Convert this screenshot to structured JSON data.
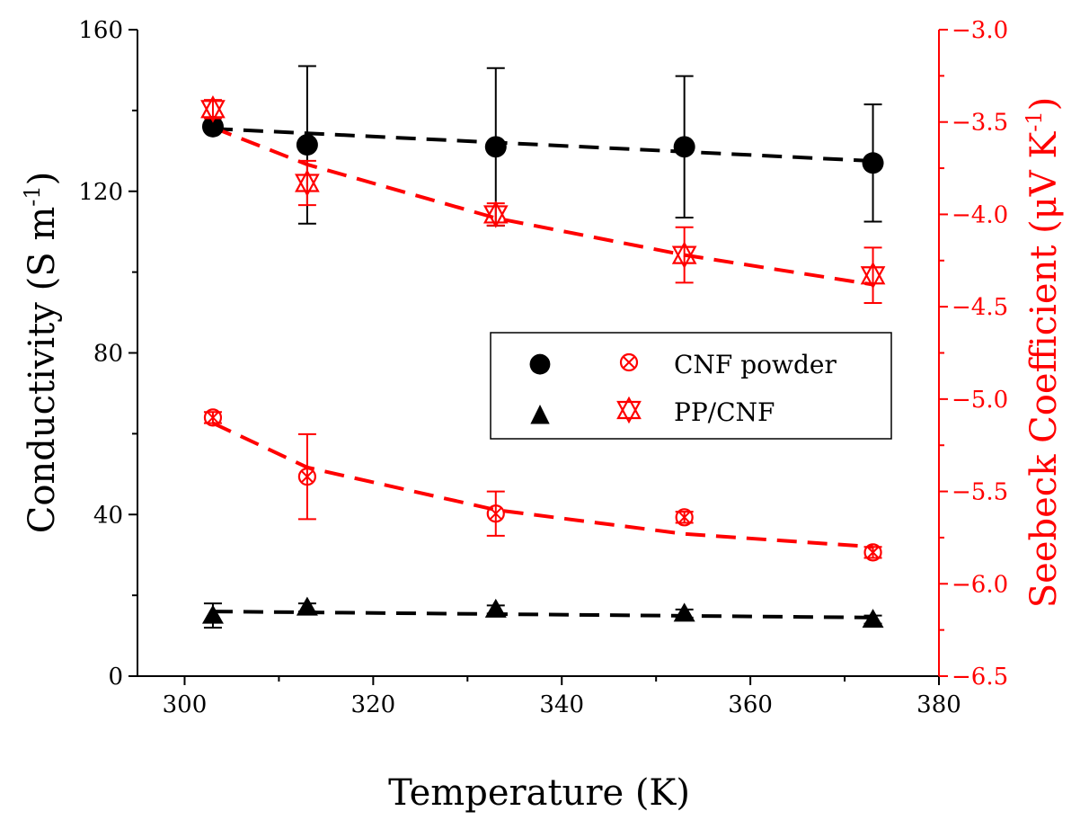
{
  "chart_data": {
    "type": "scatter",
    "xlabel": "Temperature (K)",
    "ylabel_left": {
      "text": "Conductivity (S m",
      "sup": "-1",
      "close": ")"
    },
    "ylabel_right": {
      "text": "Seebeck Coefficient (μV K",
      "sup": "-1",
      "close": ")"
    },
    "x_range": [
      295,
      380
    ],
    "x_ticks": [
      300,
      320,
      340,
      360,
      380
    ],
    "x_tick_labels": [
      "300",
      "320",
      "340",
      "360",
      "380"
    ],
    "y_left_range": [
      0,
      160
    ],
    "y_left_ticks": [
      0,
      40,
      80,
      120,
      160
    ],
    "y_left_tick_labels": [
      "0",
      "40",
      "80",
      "120",
      "160"
    ],
    "y_right_range": [
      -6.5,
      -3.0
    ],
    "y_right_ticks": [
      -6.5,
      -6.0,
      -5.5,
      -5.0,
      -4.5,
      -4.0,
      -3.5,
      -3.0
    ],
    "y_right_tick_labels": [
      "−6.5",
      "−6.0",
      "−5.5",
      "−5.0",
      "−4.5",
      "−4.0",
      "−3.5",
      "−3.0"
    ],
    "grid": false,
    "legend_position": "center-right",
    "legend": {
      "col1": [
        "●",
        "▲"
      ],
      "entries": [
        "CNF powder",
        "PP/CNF"
      ]
    },
    "colors": {
      "conductivity": "#000000",
      "seebeck": "#ff0000"
    },
    "series": [
      {
        "name": "CNF powder conductivity",
        "axis": "left",
        "marker": "circle",
        "x": [
          303,
          313,
          333,
          353,
          373
        ],
        "y": [
          136,
          131.5,
          131,
          131,
          127
        ],
        "err": [
          0,
          19.5,
          19.5,
          17.5,
          14.5
        ],
        "fit": [
          [
            303,
            135.5
          ],
          [
            373,
            127.5
          ]
        ]
      },
      {
        "name": "PP/CNF conductivity",
        "axis": "left",
        "marker": "triangle",
        "x": [
          303,
          313,
          333,
          353,
          373
        ],
        "y": [
          15,
          17,
          16.5,
          15.5,
          14
        ],
        "err": [
          3,
          1,
          1,
          1,
          1
        ],
        "fit": [
          [
            303,
            16
          ],
          [
            373,
            14.5
          ]
        ]
      },
      {
        "name": "CNF powder Seebeck",
        "axis": "right",
        "marker": "circle-cross",
        "x": [
          303,
          313,
          333,
          353,
          373
        ],
        "y": [
          -5.1,
          -5.42,
          -5.62,
          -5.64,
          -5.83
        ],
        "err": [
          0.03,
          0.23,
          0.12,
          0.03,
          0.03
        ],
        "fit": [
          [
            303,
            -5.13
          ],
          [
            313,
            -5.37
          ],
          [
            333,
            -5.6
          ],
          [
            353,
            -5.73
          ],
          [
            373,
            -5.8
          ]
        ]
      },
      {
        "name": "PP/CNF Seebeck",
        "axis": "right",
        "marker": "triangle-cross",
        "x": [
          303,
          313,
          333,
          353,
          373
        ],
        "y": [
          -3.43,
          -3.83,
          -4.0,
          -4.22,
          -4.33
        ],
        "err": [
          0.05,
          0.12,
          0.06,
          0.15,
          0.15
        ],
        "fit": [
          [
            303,
            -3.53
          ],
          [
            313,
            -3.73
          ],
          [
            333,
            -4.02
          ],
          [
            353,
            -4.22
          ],
          [
            373,
            -4.38
          ]
        ]
      }
    ]
  }
}
